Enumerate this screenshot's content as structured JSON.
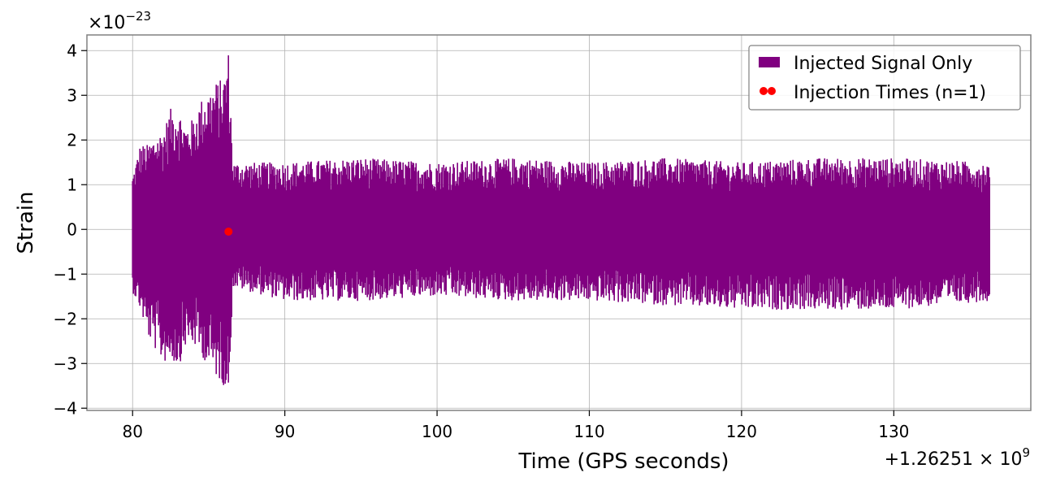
{
  "chart_data": {
    "type": "line",
    "xlabel": "Time (GPS seconds)",
    "ylabel": "Strain",
    "x_offset_label": {
      "base": "+1.26251 × 10",
      "exp": "9"
    },
    "y_multiplier_label": {
      "base": "×10",
      "exp": "−23"
    },
    "xlim": [
      77,
      139
    ],
    "ylim": [
      -4.05,
      4.35
    ],
    "x_ticks": [
      80,
      90,
      100,
      110,
      120,
      130
    ],
    "x_tick_labels": [
      "80",
      "90",
      "100",
      "110",
      "120",
      "130"
    ],
    "y_ticks": [
      -4,
      -3,
      -2,
      -1,
      0,
      1,
      2,
      3,
      4
    ],
    "y_tick_labels": [
      "−4",
      "−3",
      "−2",
      "−1",
      "0",
      "1",
      "2",
      "3",
      "4"
    ],
    "grid": true,
    "legend_position": "top-right",
    "series": [
      {
        "name": "Injected Signal Only",
        "color": "#800080",
        "kind": "strain",
        "x_start": 80.0,
        "x_end": 136.3,
        "envelope": [
          {
            "x": 80.0,
            "high": 1.2,
            "low": -1.4
          },
          {
            "x": 80.5,
            "high": 1.9,
            "low": -1.8
          },
          {
            "x": 81.0,
            "high": 1.9,
            "low": -2.4
          },
          {
            "x": 81.5,
            "high": 2.1,
            "low": -2.7
          },
          {
            "x": 82.0,
            "high": 2.2,
            "low": -3.0
          },
          {
            "x": 82.5,
            "high": 2.7,
            "low": -2.9
          },
          {
            "x": 83.0,
            "high": 2.7,
            "low": -3.1
          },
          {
            "x": 83.5,
            "high": 2.3,
            "low": -2.6
          },
          {
            "x": 84.0,
            "high": 2.5,
            "low": -2.6
          },
          {
            "x": 84.5,
            "high": 2.9,
            "low": -2.8
          },
          {
            "x": 85.0,
            "high": 3.1,
            "low": -3.1
          },
          {
            "x": 85.5,
            "high": 3.3,
            "low": -3.3
          },
          {
            "x": 86.0,
            "high": 3.4,
            "low": -3.5
          },
          {
            "x": 86.3,
            "high": 4.0,
            "low": -3.7
          },
          {
            "x": 86.6,
            "high": 1.5,
            "low": -1.3
          },
          {
            "x": 90.0,
            "high": 1.5,
            "low": -1.6
          },
          {
            "x": 95.0,
            "high": 1.6,
            "low": -1.6
          },
          {
            "x": 100.0,
            "high": 1.5,
            "low": -1.5
          },
          {
            "x": 105.0,
            "high": 1.6,
            "low": -1.6
          },
          {
            "x": 110.0,
            "high": 1.5,
            "low": -1.6
          },
          {
            "x": 115.0,
            "high": 1.6,
            "low": -1.7
          },
          {
            "x": 120.0,
            "high": 1.5,
            "low": -1.8
          },
          {
            "x": 125.0,
            "high": 1.6,
            "low": -1.8
          },
          {
            "x": 130.0,
            "high": 1.6,
            "low": -1.8
          },
          {
            "x": 136.3,
            "high": 1.5,
            "low": -1.6
          }
        ]
      },
      {
        "name": "Injection Times (n=1)",
        "color": "#ff0000",
        "kind": "points",
        "points": [
          {
            "x": 86.3,
            "y": -0.05
          }
        ]
      }
    ]
  }
}
